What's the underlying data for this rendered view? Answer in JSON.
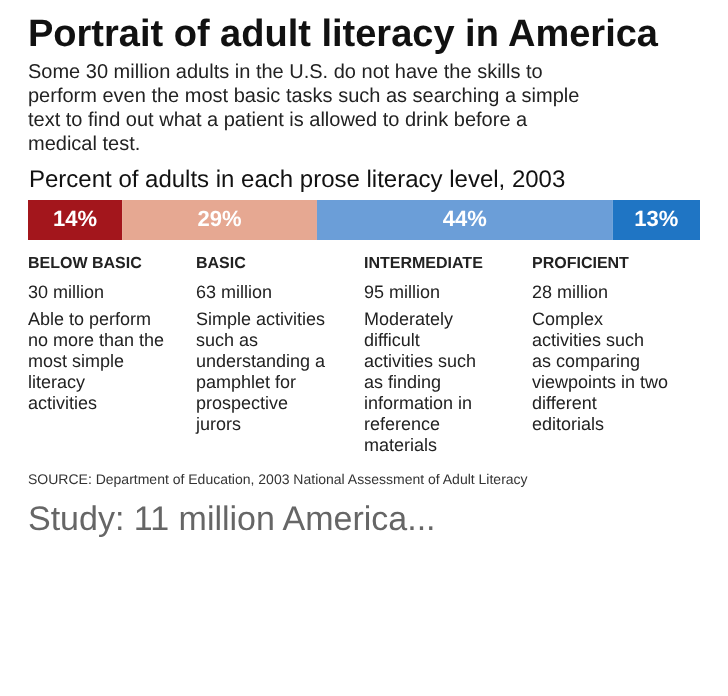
{
  "chart_data": {
    "type": "bar",
    "orientation": "horizontal",
    "stacked": true,
    "title": "Portrait of adult literacy in America",
    "subtitle": "Some 30 million adults in the U.S. do not have the skills to perform even the most basic tasks such as searching a simple text to find out what a patient is allowed to drink before a medical test.",
    "xlabel": "Percent of adults in each prose literacy level, 2003",
    "categories": [
      null
    ],
    "series": [
      {
        "name": "BELOW BASIC",
        "color": "#a3161c",
        "values": [
          14
        ],
        "value_labels": [
          "14%"
        ]
      },
      {
        "name": "BASIC",
        "color": "#e6a892",
        "values": [
          29
        ],
        "value_labels": [
          "29%"
        ]
      },
      {
        "name": "INTERMEDIATE",
        "color": "#6b9ed8",
        "values": [
          44
        ],
        "value_labels": [
          "44%"
        ]
      },
      {
        "name": "PROFICIENT",
        "color": "#1f75c4",
        "values": [
          13
        ],
        "value_labels": [
          "13%"
        ]
      }
    ],
    "annotations": [
      "30 million",
      "Able to perform no more than the most simple literacy activities",
      "63 million",
      "Simple activities such as understanding a pamphlet for prospective jurors",
      "95 million",
      "Moderately difficult activities such as finding information in reference materials",
      "28 million",
      "Complex activities such as comparing viewpoints in two different editorials",
      "SOURCE: Department of Education, 2003 National Assessment of Adult Literacy",
      "Study: 11 million America..."
    ]
  }
}
